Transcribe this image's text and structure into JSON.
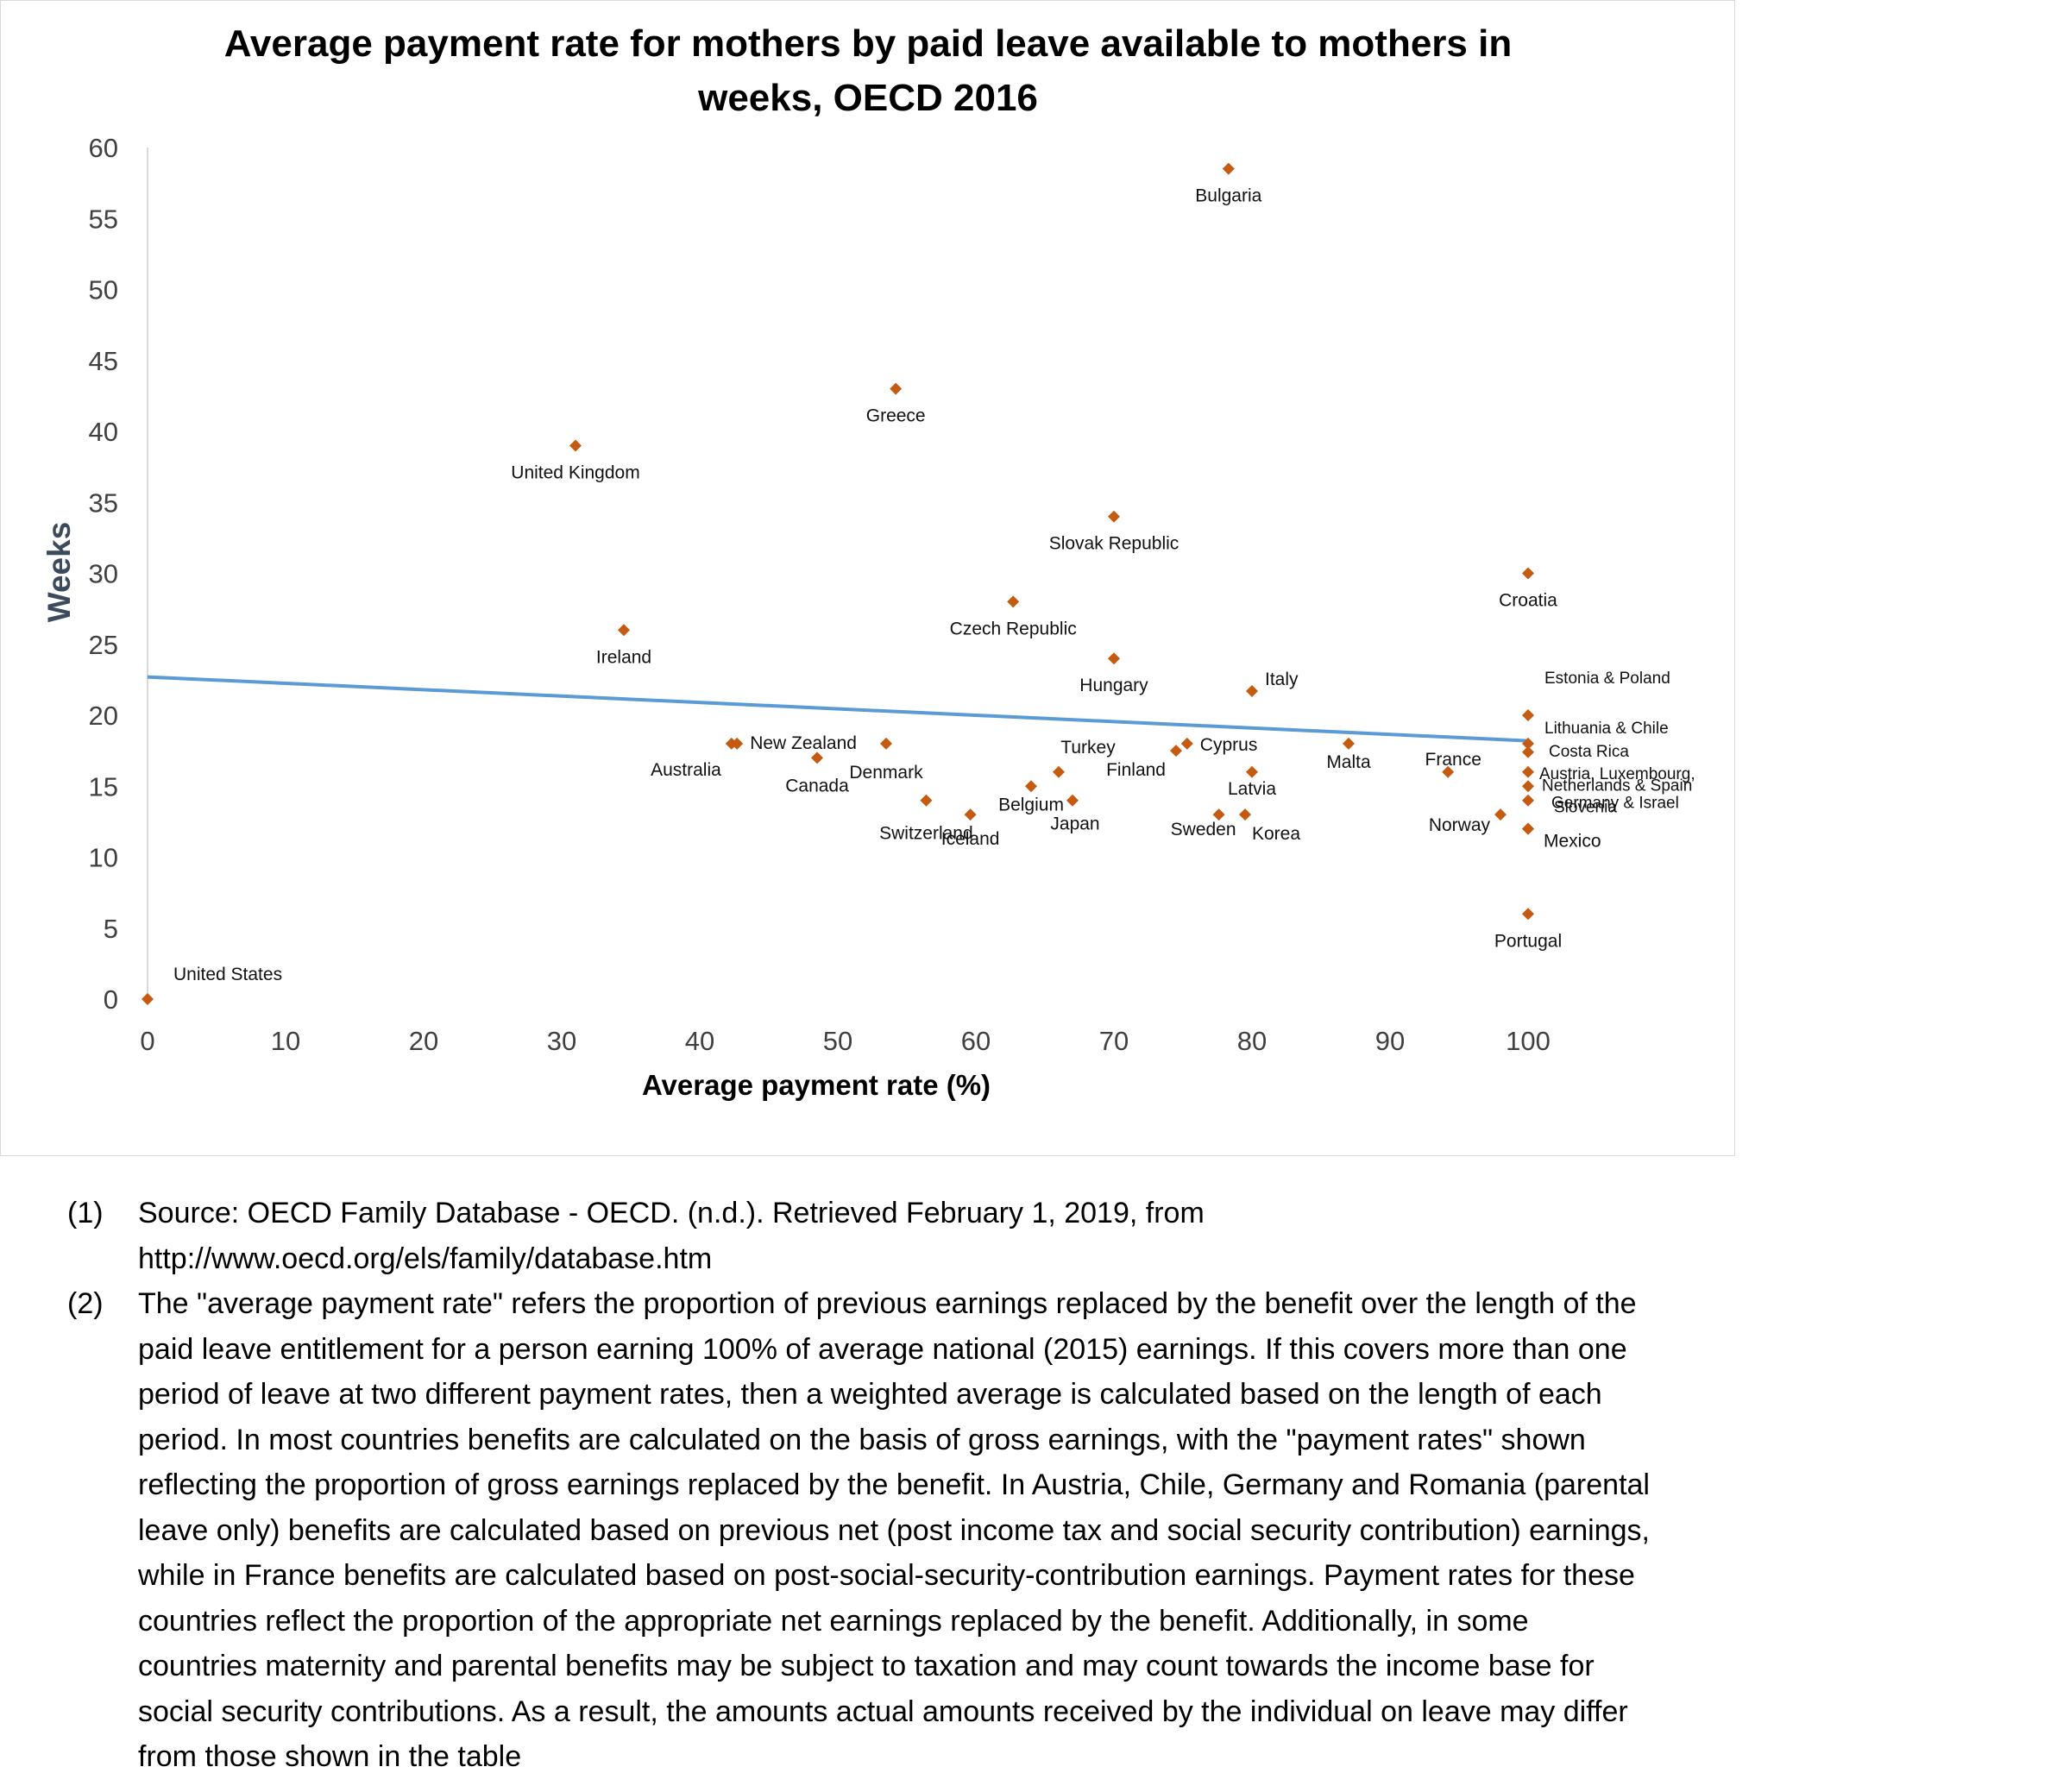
{
  "chart_data": {
    "type": "scatter",
    "title_lines": [
      "Average payment rate for mothers by  paid leave available to mothers in",
      "weeks, OECD 2016"
    ],
    "xlabel": "Average payment rate (%)",
    "ylabel": "Weeks",
    "xlim": [
      0,
      100
    ],
    "ylim": [
      0,
      60
    ],
    "x_ticks": [
      "0",
      "10",
      "20",
      "30",
      "40",
      "50",
      "60",
      "70",
      "80",
      "90",
      "100"
    ],
    "y_ticks": [
      "0",
      "5",
      "10",
      "15",
      "20",
      "25",
      "30",
      "35",
      "40",
      "45",
      "50",
      "55",
      "60"
    ],
    "grid": false,
    "marker_color": "#c55a11",
    "trendline": {
      "color": "#5b9bd5",
      "y_at_x0": 22.7,
      "y_at_x100": 18.2
    },
    "points": [
      {
        "x": 0,
        "y": 0,
        "label": "United States"
      },
      {
        "x": 31,
        "y": 39,
        "label": "United Kingdom"
      },
      {
        "x": 34.5,
        "y": 26,
        "label": "Ireland"
      },
      {
        "x": 42.3,
        "y": 18,
        "label": "Australia"
      },
      {
        "x": 42.7,
        "y": 18,
        "label": "New Zealand"
      },
      {
        "x": 48.5,
        "y": 17,
        "label": "Canada"
      },
      {
        "x": 53.5,
        "y": 18,
        "label": "Denmark"
      },
      {
        "x": 54.2,
        "y": 43,
        "label": "Greece"
      },
      {
        "x": 56.4,
        "y": 14,
        "label": "Switzerland"
      },
      {
        "x": 59.6,
        "y": 13,
        "label": "Iceland"
      },
      {
        "x": 62.7,
        "y": 28,
        "label": "Czech Republic"
      },
      {
        "x": 64,
        "y": 15,
        "label": "Belgium"
      },
      {
        "x": 66,
        "y": 16,
        "label": "Turkey"
      },
      {
        "x": 67,
        "y": 14,
        "label": "Japan"
      },
      {
        "x": 70,
        "y": 34,
        "label": "Slovak Republic"
      },
      {
        "x": 70,
        "y": 24,
        "label": "Hungary"
      },
      {
        "x": 74.5,
        "y": 17.5,
        "label": "Finland"
      },
      {
        "x": 75.3,
        "y": 18,
        "label": "Cyprus"
      },
      {
        "x": 77.6,
        "y": 13,
        "label": "Sweden"
      },
      {
        "x": 78.3,
        "y": 58.5,
        "label": "Bulgaria"
      },
      {
        "x": 79.5,
        "y": 13,
        "label": "Korea"
      },
      {
        "x": 80,
        "y": 16,
        "label": "Latvia"
      },
      {
        "x": 80,
        "y": 21.7,
        "label": "Italy"
      },
      {
        "x": 87,
        "y": 18,
        "label": "Malta"
      },
      {
        "x": 94.2,
        "y": 16,
        "label": "France"
      },
      {
        "x": 98,
        "y": 13,
        "label": "Norway"
      },
      {
        "x": 100,
        "y": 30,
        "label": "Croatia"
      },
      {
        "x": 100,
        "y": 20,
        "label": "Estonia & Poland"
      },
      {
        "x": 100,
        "y": 18,
        "label": "Lithuania & Chile"
      },
      {
        "x": 100,
        "y": 17.4,
        "label": "Costa Rica"
      },
      {
        "x": 100,
        "y": 16,
        "label": "Austria, Luxembourg,"
      },
      {
        "x": 100,
        "y": 15,
        "label": "Netherlands & Spain"
      },
      {
        "x": 100,
        "y": 14,
        "label": "Germany & Israel"
      },
      {
        "x": 100,
        "y": 12,
        "label": "Slovenia"
      },
      {
        "x": 100,
        "y": 6,
        "label": "Mexico"
      },
      {
        "x": 100,
        "y": 6,
        "label": "Portugal"
      }
    ]
  },
  "notes": [
    {
      "num": "(1)",
      "lines": [
        "Source: OECD Family Database - OECD. (n.d.). Retrieved February 1, 2019, from",
        "http://www.oecd.org/els/family/database.htm"
      ]
    },
    {
      "num": "(2)",
      "lines": [
        "The \"average payment rate\" refers the proportion of previous earnings replaced by the benefit over the length of the",
        "paid leave entitlement for a person earning 100% of average national (2015) earnings. If this covers more than one",
        "period of leave at two different payment rates, then a weighted average is calculated based on the length of each",
        "period. In most countries benefits are calculated on the basis of gross earnings, with the \"payment rates\" shown",
        "reflecting the proportion of gross earnings replaced by the benefit. In Austria, Chile, Germany and Romania (parental",
        "leave only) benefits are calculated based on previous net (post income tax and social security contribution) earnings,",
        "while in France benefits are calculated based on post-social-security-contribution earnings. Payment rates for these",
        "countries reflect the proportion of the appropriate net earnings replaced by the benefit. Additionally, in some",
        "countries maternity and parental benefits may be subject to taxation and may count towards the income base for",
        "social security contributions. As a result, the amounts actual amounts received by the individual on leave may differ",
        "from those shown in the table"
      ]
    }
  ]
}
